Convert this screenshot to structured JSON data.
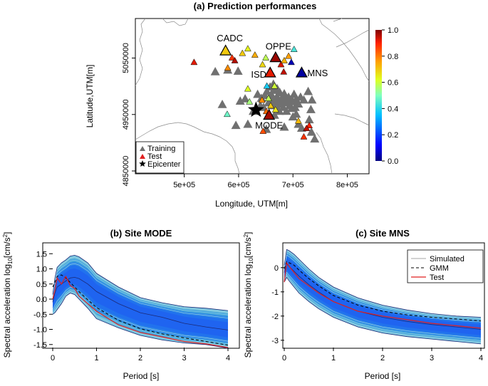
{
  "chart_data": [
    {
      "type": "scatter",
      "title": "(a) Prediction performances",
      "xlabel": "Longitude, UTM[m]",
      "ylabel": "Latitude,UTM[m]",
      "xlim": [
        410000,
        840000
      ],
      "ylim": [
        4845000,
        5120000
      ],
      "x_ticks": [
        500000,
        600000,
        700000,
        800000
      ],
      "x_tick_labels": [
        "5e+05",
        "6e+05",
        "7e+05",
        "8e+05"
      ],
      "y_ticks": [
        4850000,
        4950000,
        5050000
      ],
      "y_tick_labels": [
        "4850000",
        "4950000",
        "5050000"
      ],
      "colorbar": {
        "range": [
          0,
          1
        ],
        "ticks": [
          0.0,
          0.2,
          0.4,
          0.6,
          0.8,
          1.0
        ],
        "tick_labels": [
          "0.0",
          "0.2",
          "0.4",
          "0.6",
          "0.8",
          "1.0"
        ]
      },
      "legend": [
        {
          "label": "Training",
          "marker": "triangle",
          "color": "#707070"
        },
        {
          "label": "Test",
          "marker": "triangle",
          "color": "#e02020"
        },
        {
          "label": "Epicenter",
          "marker": "star",
          "color": "#000000"
        }
      ],
      "epicenter": {
        "x": 632000,
        "y": 4958000
      },
      "training_stations": [
        [
          557000,
          5025000
        ],
        [
          580000,
          5028000
        ],
        [
          599000,
          5026000
        ],
        [
          612000,
          4977000
        ],
        [
          627000,
          4955000
        ],
        [
          635000,
          4985000
        ],
        [
          642000,
          4978000
        ],
        [
          648000,
          4983000
        ],
        [
          652000,
          4990000
        ],
        [
          655000,
          4970000
        ],
        [
          658000,
          4975000
        ],
        [
          660000,
          4985000
        ],
        [
          662000,
          4965000
        ],
        [
          664000,
          4978000
        ],
        [
          666000,
          4992000
        ],
        [
          668000,
          4970000
        ],
        [
          670000,
          4980000
        ],
        [
          672000,
          4960000
        ],
        [
          674000,
          4975000
        ],
        [
          676000,
          4988000
        ],
        [
          678000,
          4968000
        ],
        [
          680000,
          4978000
        ],
        [
          682000,
          4962000
        ],
        [
          684000,
          4972000
        ],
        [
          686000,
          4982000
        ],
        [
          688000,
          4955000
        ],
        [
          690000,
          4970000
        ],
        [
          692000,
          4980000
        ],
        [
          694000,
          4965000
        ],
        [
          696000,
          4975000
        ],
        [
          698000,
          4960000
        ],
        [
          700000,
          4972000
        ],
        [
          702000,
          4985000
        ],
        [
          704000,
          4962000
        ],
        [
          706000,
          4976000
        ],
        [
          710000,
          4968000
        ],
        [
          714000,
          4980000
        ],
        [
          720000,
          4975000
        ],
        [
          728000,
          4990000
        ],
        [
          735000,
          4975000
        ],
        [
          658000,
          4998000
        ],
        [
          664000,
          5003000
        ],
        [
          671000,
          4995000
        ],
        [
          646000,
          4962000
        ],
        [
          640000,
          4965000
        ],
        [
          666000,
          4948000
        ],
        [
          675000,
          4955000
        ],
        [
          700000,
          4945000
        ],
        [
          706000,
          4950000
        ],
        [
          710000,
          4932000
        ],
        [
          716000,
          4925000
        ],
        [
          740000,
          4906000
        ],
        [
          734000,
          4918000
        ],
        [
          570000,
          4967000
        ],
        [
          595000,
          4930000
        ],
        [
          603000,
          4973000
        ],
        [
          617000,
          4932000
        ],
        [
          651000,
          4923000
        ],
        [
          684000,
          4927000
        ],
        [
          684000,
          4986000
        ],
        [
          730000,
          4940000
        ],
        [
          733000,
          4958000
        ]
      ],
      "test_stations": [
        {
          "name": "",
          "x": 518000,
          "y": 5042000,
          "value": 0.92
        },
        {
          "name": "CADC",
          "x": 576000,
          "y": 5062000,
          "value": 0.7
        },
        {
          "name": "",
          "x": 588000,
          "y": 5050000,
          "value": 0.88
        },
        {
          "name": "",
          "x": 593000,
          "y": 5045000,
          "value": 0.96
        },
        {
          "name": "",
          "x": 580000,
          "y": 5032000,
          "value": 0.78
        },
        {
          "name": "",
          "x": 607000,
          "y": 5058000,
          "value": 0.7
        },
        {
          "name": "",
          "x": 617000,
          "y": 5066000,
          "value": 0.64
        },
        {
          "name": "",
          "x": 630000,
          "y": 5055000,
          "value": 0.74
        },
        {
          "name": "",
          "x": 644000,
          "y": 5038000,
          "value": 0.68
        },
        {
          "name": "",
          "x": 650000,
          "y": 5050000,
          "value": 0.58
        },
        {
          "name": "OPPE",
          "x": 668000,
          "y": 5050000,
          "value": 0.98
        },
        {
          "name": "",
          "x": 678000,
          "y": 5038000,
          "value": 0.93
        },
        {
          "name": "",
          "x": 683000,
          "y": 5025000,
          "value": 0.95
        },
        {
          "name": "ISD",
          "x": 658000,
          "y": 5023000,
          "value": 0.92
        },
        {
          "name": "",
          "x": 684000,
          "y": 5045000,
          "value": 0.73
        },
        {
          "name": "",
          "x": 692000,
          "y": 5053000,
          "value": 0.76
        },
        {
          "name": "",
          "x": 697000,
          "y": 5042000,
          "value": 0.05
        },
        {
          "name": "",
          "x": 702000,
          "y": 5065000,
          "value": 0.44
        },
        {
          "name": "MNS",
          "x": 716000,
          "y": 5023000,
          "value": 0.03
        },
        {
          "name": "",
          "x": 652000,
          "y": 5000000,
          "value": 0.38
        },
        {
          "name": "",
          "x": 655000,
          "y": 4978000,
          "value": 0.58
        },
        {
          "name": "",
          "x": 666000,
          "y": 5000000,
          "value": 0.6
        },
        {
          "name": "",
          "x": 617000,
          "y": 4995000,
          "value": 0.62
        },
        {
          "name": "",
          "x": 620000,
          "y": 4972000,
          "value": 0.55
        },
        {
          "name": "",
          "x": 643000,
          "y": 4975000,
          "value": 0.78
        },
        {
          "name": "",
          "x": 651000,
          "y": 4955000,
          "value": 0.82
        },
        {
          "name": "",
          "x": 659000,
          "y": 4965000,
          "value": 0.7
        },
        {
          "name": "MODE",
          "x": 656000,
          "y": 4948000,
          "value": 0.97
        },
        {
          "name": "",
          "x": 668000,
          "y": 4958000,
          "value": 0.66
        },
        {
          "name": "",
          "x": 579000,
          "y": 4950000,
          "value": 0.48
        },
        {
          "name": "",
          "x": 645000,
          "y": 4920000,
          "value": 0.85
        },
        {
          "name": "",
          "x": 710000,
          "y": 4938000,
          "value": 0.72
        },
        {
          "name": "",
          "x": 730000,
          "y": 4930000,
          "value": 0.9
        },
        {
          "name": "",
          "x": 720000,
          "y": 4910000,
          "value": 0.88
        },
        {
          "name": "",
          "x": 725000,
          "y": 4925000,
          "value": 0.95
        }
      ]
    },
    {
      "type": "line",
      "title": "(b) Site MODE",
      "xlabel": "Period [s]",
      "ylabel": "Spectral acceleration log10[cm/s2]",
      "xlim": [
        0,
        4
      ],
      "ylim": [
        -1.6,
        1.6
      ],
      "x_ticks": [
        0,
        1,
        2,
        3,
        4
      ],
      "y_ticks": [
        -1.5,
        -1.0,
        -0.5,
        0.0,
        0.5,
        1.0,
        1.5
      ],
      "y_tick_labels": [
        "-1.5",
        "-1.0",
        "-0.5",
        "0.0",
        "0.5",
        "1.0",
        "1.5"
      ],
      "x": [
        0,
        0.05,
        0.1,
        0.2,
        0.3,
        0.4,
        0.5,
        0.6,
        0.8,
        1.0,
        1.5,
        2.0,
        2.5,
        3.0,
        3.5,
        4.0
      ],
      "series": [
        {
          "name": "Simulated upper envelope",
          "values": [
            0.15,
            0.7,
            1.05,
            1.2,
            1.3,
            1.42,
            1.45,
            1.4,
            1.2,
            0.85,
            0.4,
            0.05,
            -0.12,
            -0.25,
            -0.3,
            -0.38
          ]
        },
        {
          "name": "Simulated lower envelope",
          "values": [
            -0.5,
            -0.45,
            -0.35,
            -0.15,
            0.1,
            0.2,
            0.15,
            0.0,
            -0.3,
            -0.65,
            -0.95,
            -1.2,
            -1.35,
            -1.45,
            -1.5,
            -1.62
          ]
        },
        {
          "name": "Simulated median",
          "values": [
            -0.1,
            0.2,
            0.4,
            0.5,
            0.6,
            0.7,
            0.72,
            0.68,
            0.5,
            0.25,
            -0.15,
            -0.45,
            -0.6,
            -0.8,
            -0.92,
            -1.02
          ]
        },
        {
          "name": "GMM",
          "values": [
            0.4,
            0.55,
            0.75,
            0.8,
            0.7,
            0.55,
            0.4,
            0.25,
            -0.02,
            -0.28,
            -0.7,
            -0.98,
            -1.15,
            -1.28,
            -1.4,
            -1.52
          ]
        },
        {
          "name": "Test",
          "values": [
            0.0,
            0.3,
            0.7,
            0.5,
            0.75,
            0.45,
            0.35,
            0.1,
            -0.15,
            -0.4,
            -0.85,
            -1.1,
            -1.25,
            -1.4,
            -1.48,
            -1.6
          ]
        }
      ]
    },
    {
      "type": "line",
      "title": "(c) Site MNS",
      "xlabel": "Period [s]",
      "ylabel": "Spectral acceleration log10[cm/s2]",
      "xlim": [
        0,
        4
      ],
      "ylim": [
        -3.3,
        0.7
      ],
      "x_ticks": [
        0,
        1,
        2,
        3,
        4
      ],
      "y_ticks": [
        -3,
        -2,
        -1,
        0
      ],
      "y_tick_labels": [
        "-3",
        "-2",
        "-1",
        "0"
      ],
      "legend_labels": [
        "Simulated",
        "GMM",
        "Test"
      ],
      "x": [
        0,
        0.05,
        0.1,
        0.2,
        0.3,
        0.5,
        0.7,
        1.0,
        1.5,
        2.0,
        2.5,
        3.0,
        3.5,
        4.0
      ],
      "series": [
        {
          "name": "Simulated upper envelope",
          "values": [
            0.1,
            0.75,
            0.7,
            0.55,
            0.35,
            -0.05,
            -0.4,
            -0.8,
            -1.25,
            -1.55,
            -1.75,
            -1.9,
            -2.0,
            -2.05
          ]
        },
        {
          "name": "Simulated lower envelope",
          "values": [
            -0.6,
            -0.4,
            -0.55,
            -0.8,
            -1.05,
            -1.4,
            -1.7,
            -2.05,
            -2.45,
            -2.7,
            -2.85,
            -2.95,
            -3.05,
            -3.15
          ]
        },
        {
          "name": "Simulated median",
          "values": [
            -0.2,
            0.15,
            0.05,
            -0.15,
            -0.35,
            -0.7,
            -1.0,
            -1.4,
            -1.8,
            -2.05,
            -2.22,
            -2.35,
            -2.45,
            -2.55
          ]
        },
        {
          "name": "GMM",
          "values": [
            -0.05,
            0.25,
            0.2,
            0.1,
            -0.1,
            -0.45,
            -0.75,
            -1.15,
            -1.55,
            -1.8,
            -1.95,
            -2.05,
            -2.12,
            -2.2
          ]
        },
        {
          "name": "Test",
          "values": [
            -0.6,
            0.2,
            0.05,
            -0.2,
            -0.45,
            -0.75,
            -1.05,
            -1.4,
            -1.8,
            -2.0,
            -2.15,
            -2.3,
            -2.4,
            -2.5
          ]
        }
      ]
    }
  ]
}
